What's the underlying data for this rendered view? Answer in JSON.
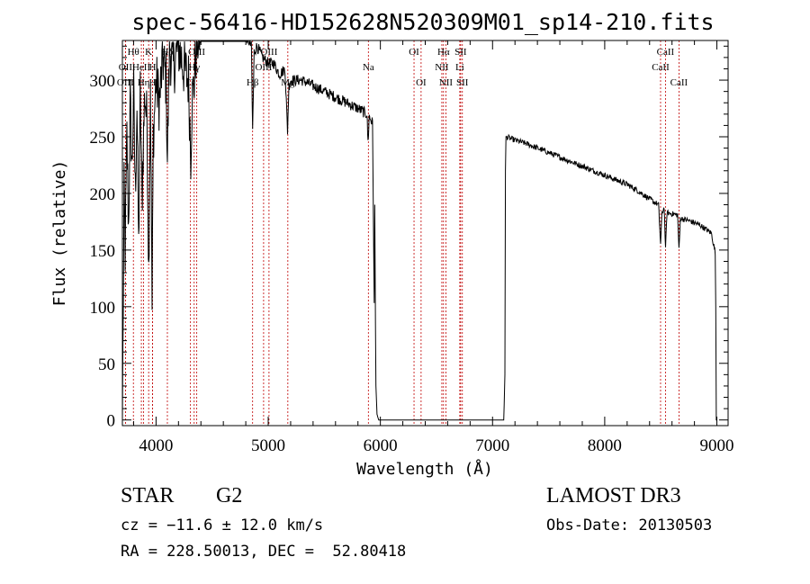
{
  "chart_data": {
    "type": "line",
    "title": "spec-56416-HD152628N520309M01_sp14-210.fits",
    "xlabel": "Wavelength (Å)",
    "ylabel": "Flux (relative)",
    "xlim": [
      3700,
      9100
    ],
    "ylim": [
      -5,
      335
    ],
    "xticks": [
      4000,
      5000,
      6000,
      7000,
      8000,
      9000
    ],
    "yticks": [
      0,
      50,
      100,
      150,
      200,
      250,
      300
    ],
    "spectrum_anchors": [
      [
        3700,
        0
      ],
      [
        3705,
        60
      ],
      [
        3715,
        200
      ],
      [
        3725,
        150
      ],
      [
        3740,
        250
      ],
      [
        3755,
        170
      ],
      [
        3770,
        280
      ],
      [
        3785,
        220
      ],
      [
        3800,
        290
      ],
      [
        3815,
        200
      ],
      [
        3830,
        280
      ],
      [
        3845,
        150
      ],
      [
        3860,
        290
      ],
      [
        3875,
        190
      ],
      [
        3885,
        240
      ],
      [
        3900,
        290
      ],
      [
        3920,
        260
      ],
      [
        3935,
        130
      ],
      [
        3950,
        300
      ],
      [
        3965,
        95
      ],
      [
        3975,
        250
      ],
      [
        4000,
        300
      ],
      [
        4030,
        280
      ],
      [
        4060,
        320
      ],
      [
        4090,
        300
      ],
      [
        4101,
        230
      ],
      [
        4120,
        330
      ],
      [
        4150,
        310
      ],
      [
        4200,
        330
      ],
      [
        4250,
        310
      ],
      [
        4290,
        300
      ],
      [
        4310,
        235
      ],
      [
        4320,
        280
      ],
      [
        4340,
        300
      ],
      [
        4360,
        330
      ],
      [
        4400,
        345
      ],
      [
        4450,
        340
      ],
      [
        4500,
        345
      ],
      [
        4550,
        350
      ],
      [
        4600,
        345
      ],
      [
        4650,
        350
      ],
      [
        4700,
        345
      ],
      [
        4750,
        345
      ],
      [
        4800,
        340
      ],
      [
        4850,
        330
      ],
      [
        4861,
        255
      ],
      [
        4875,
        325
      ],
      [
        4900,
        330
      ],
      [
        4950,
        320
      ],
      [
        5000,
        315
      ],
      [
        5050,
        315
      ],
      [
        5100,
        305
      ],
      [
        5150,
        310
      ],
      [
        5172,
        255
      ],
      [
        5185,
        295
      ],
      [
        5200,
        300
      ],
      [
        5300,
        300
      ],
      [
        5400,
        295
      ],
      [
        5500,
        290
      ],
      [
        5600,
        285
      ],
      [
        5700,
        280
      ],
      [
        5800,
        275
      ],
      [
        5880,
        270
      ],
      [
        5890,
        245
      ],
      [
        5900,
        268
      ],
      [
        5930,
        262
      ],
      [
        5945,
        100
      ],
      [
        5950,
        190
      ],
      [
        5960,
        30
      ],
      [
        5970,
        5
      ],
      [
        5985,
        0
      ],
      [
        6100,
        0
      ],
      [
        6500,
        0
      ],
      [
        7000,
        0
      ],
      [
        7100,
        0
      ],
      [
        7110,
        40
      ],
      [
        7115,
        220
      ],
      [
        7120,
        250
      ],
      [
        7200,
        247
      ],
      [
        7300,
        244
      ],
      [
        7400,
        240
      ],
      [
        7500,
        236
      ],
      [
        7600,
        232
      ],
      [
        7700,
        228
      ],
      [
        7800,
        224
      ],
      [
        7900,
        220
      ],
      [
        8000,
        216
      ],
      [
        8100,
        212
      ],
      [
        8200,
        208
      ],
      [
        8300,
        202
      ],
      [
        8400,
        195
      ],
      [
        8480,
        190
      ],
      [
        8498,
        155
      ],
      [
        8510,
        182
      ],
      [
        8530,
        188
      ],
      [
        8542,
        150
      ],
      [
        8555,
        183
      ],
      [
        8600,
        182
      ],
      [
        8650,
        181
      ],
      [
        8662,
        150
      ],
      [
        8675,
        178
      ],
      [
        8750,
        176
      ],
      [
        8850,
        172
      ],
      [
        8950,
        165
      ],
      [
        8985,
        148
      ],
      [
        8990,
        100
      ],
      [
        8995,
        0
      ],
      [
        9000,
        0
      ]
    ],
    "lines": [
      {
        "label": "Hθ",
        "x": 3798,
        "row": 1
      },
      {
        "label": "OII",
        "x": 3727,
        "row": 2
      },
      {
        "label": "OIII",
        "x": 3727,
        "row": 3
      },
      {
        "label": "K",
        "x": 3934,
        "row": 1
      },
      {
        "label": "HeII",
        "x": 3869,
        "row": 2
      },
      {
        "label": "Hη",
        "x": 3889,
        "row": 3
      },
      {
        "label": "H",
        "x": 3969,
        "row": 2
      },
      {
        "label": "H",
        "x": 3969,
        "row": 3
      },
      {
        "label": "Hδ",
        "x": 4101,
        "row": 1
      },
      {
        "label": "OIII",
        "x": 4363,
        "row": 1
      },
      {
        "label": "Hγ",
        "x": 4340,
        "row": 2
      },
      {
        "label": "G",
        "x": 4307,
        "row": 3
      },
      {
        "label": "OIII",
        "x": 5007,
        "row": 1
      },
      {
        "label": "OIII",
        "x": 4959,
        "row": 2
      },
      {
        "label": "Hβ",
        "x": 4861,
        "row": 3
      },
      {
        "label": "Mg",
        "x": 5175,
        "row": 3
      },
      {
        "label": "Na",
        "x": 5893,
        "row": 2
      },
      {
        "label": "OI",
        "x": 6300,
        "row": 1
      },
      {
        "label": "OI",
        "x": 6363,
        "row": 3
      },
      {
        "label": "Hα",
        "x": 6563,
        "row": 1
      },
      {
        "label": "SII",
        "x": 6716,
        "row": 1
      },
      {
        "label": "NII",
        "x": 6548,
        "row": 2
      },
      {
        "label": "Li",
        "x": 6708,
        "row": 2
      },
      {
        "label": "NII",
        "x": 6584,
        "row": 3
      },
      {
        "label": "SII",
        "x": 6731,
        "row": 3
      },
      {
        "label": "CaII",
        "x": 8542,
        "row": 1
      },
      {
        "label": "CaII",
        "x": 8498,
        "row": 2
      },
      {
        "label": "CaII",
        "x": 8662,
        "row": 3
      }
    ]
  },
  "info": {
    "object_type": "STAR",
    "subclass": "G2",
    "redshift": "cz = −11.6 ± 12.0 km/s",
    "coords": "RA = 228.50013, DEC =  52.80418",
    "survey": "LAMOST DR3",
    "obs_date": "Obs-Date: 20130503"
  },
  "colors": {
    "line_marker": "#c00000",
    "spectrum": "#000000",
    "axes": "#000000"
  }
}
